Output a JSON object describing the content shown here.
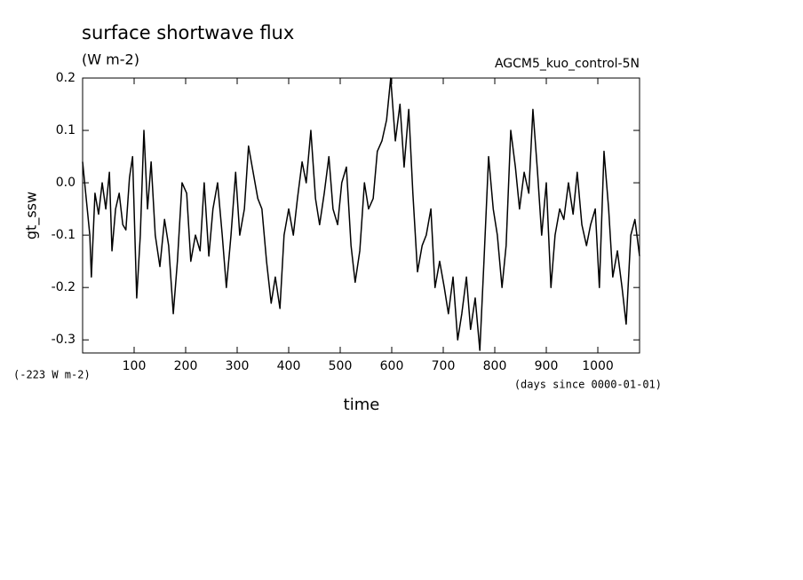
{
  "chart_data": {
    "type": "line",
    "title": "surface shortwave flux",
    "subtitle": "(W m-2)",
    "annotation": "AGCM5_kuo_control-5N",
    "y_offset_label": "(-223 W m-2)",
    "x_unit_label": "(days since 0000-01-01)",
    "x_label": "time",
    "y_label": "gt_ssw",
    "xlim": [
      0,
      1081
    ],
    "ylim": [
      -0.325,
      0.2
    ],
    "xticks": [
      100,
      200,
      300,
      400,
      500,
      600,
      700,
      800,
      900,
      1000
    ],
    "yticks": [
      0.2,
      0.1,
      {
        "value": 0,
        "label": "0.0"
      },
      -0.1,
      -0.2,
      -0.3
    ],
    "grid": false,
    "series": [
      {
        "name": "gt_ssw",
        "color": "#000000",
        "x": [
          0,
          7,
          14,
          17,
          24,
          31,
          38,
          45,
          52,
          57,
          64,
          71,
          78,
          84,
          91,
          97,
          105,
          112,
          119,
          126,
          133,
          141,
          150,
          159,
          167,
          176,
          184,
          193,
          202,
          210,
          219,
          228,
          236,
          245,
          253,
          262,
          271,
          279,
          288,
          297,
          305,
          314,
          322,
          331,
          340,
          348,
          357,
          366,
          374,
          383,
          391,
          400,
          409,
          417,
          426,
          434,
          443,
          452,
          460,
          469,
          478,
          486,
          495,
          503,
          512,
          521,
          529,
          538,
          547,
          555,
          564,
          572,
          581,
          590,
          598,
          607,
          616,
          624,
          633,
          641,
          650,
          659,
          667,
          676,
          684,
          693,
          702,
          710,
          719,
          728,
          736,
          745,
          753,
          762,
          771,
          779,
          788,
          797,
          805,
          814,
          822,
          831,
          840,
          848,
          857,
          866,
          874,
          883,
          891,
          900,
          909,
          917,
          926,
          934,
          943,
          952,
          960,
          969,
          978,
          986,
          995,
          1003,
          1012,
          1021,
          1029,
          1038,
          1047,
          1055,
          1064,
          1072,
          1081
        ],
        "values": [
          0.04,
          -0.03,
          -0.1,
          -0.18,
          -0.02,
          -0.06,
          0.0,
          -0.05,
          0.02,
          -0.13,
          -0.05,
          -0.02,
          -0.08,
          -0.09,
          0.01,
          0.05,
          -0.22,
          -0.1,
          0.1,
          -0.05,
          0.04,
          -0.1,
          -0.16,
          -0.07,
          -0.12,
          -0.25,
          -0.15,
          0.0,
          -0.02,
          -0.15,
          -0.1,
          -0.13,
          0.0,
          -0.14,
          -0.05,
          0.0,
          -0.1,
          -0.2,
          -0.1,
          0.02,
          -0.1,
          -0.05,
          0.07,
          0.02,
          -0.03,
          -0.05,
          -0.15,
          -0.23,
          -0.18,
          -0.24,
          -0.1,
          -0.05,
          -0.1,
          -0.03,
          0.04,
          0.0,
          0.1,
          -0.03,
          -0.08,
          -0.02,
          0.05,
          -0.05,
          -0.08,
          0.0,
          0.03,
          -0.12,
          -0.19,
          -0.13,
          0.0,
          -0.05,
          -0.03,
          0.06,
          0.08,
          0.12,
          0.2,
          0.08,
          0.15,
          0.03,
          0.14,
          -0.02,
          -0.17,
          -0.12,
          -0.1,
          -0.05,
          -0.2,
          -0.15,
          -0.2,
          -0.25,
          -0.18,
          -0.3,
          -0.25,
          -0.18,
          -0.28,
          -0.22,
          -0.32,
          -0.15,
          0.05,
          -0.05,
          -0.1,
          -0.2,
          -0.12,
          0.1,
          0.03,
          -0.05,
          0.02,
          -0.02,
          0.14,
          0.02,
          -0.1,
          0.0,
          -0.2,
          -0.1,
          -0.05,
          -0.07,
          0.0,
          -0.06,
          0.02,
          -0.08,
          -0.12,
          -0.08,
          -0.05,
          -0.2,
          0.06,
          -0.05,
          -0.18,
          -0.13,
          -0.2,
          -0.27,
          -0.1,
          -0.07,
          -0.14
        ]
      }
    ]
  }
}
